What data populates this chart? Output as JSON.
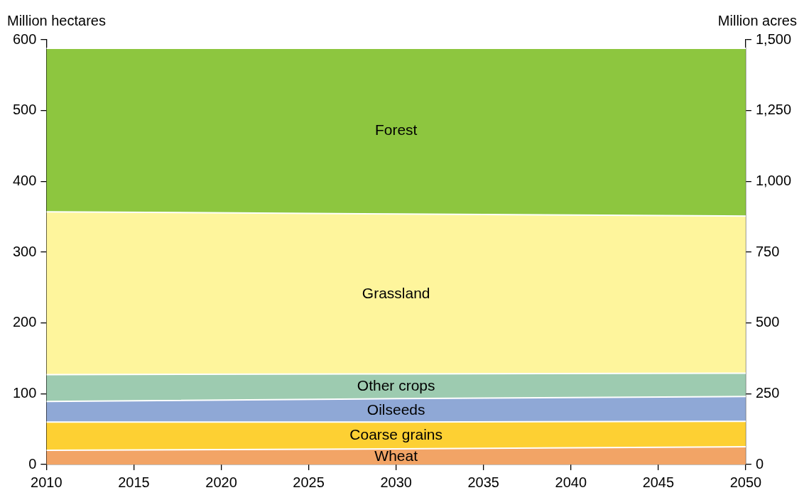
{
  "chart_data": {
    "type": "area",
    "stacked": true,
    "ylabel": "Million hectares",
    "y2label": "Million acres",
    "x": [
      2010,
      2030,
      2050
    ],
    "series": [
      {
        "name": "Wheat",
        "color": "#f2a466",
        "values": [
          20,
          22,
          25
        ]
      },
      {
        "name": "Coarse grains",
        "color": "#fdd033",
        "values": [
          40,
          38,
          36
        ]
      },
      {
        "name": "Oilseeds",
        "color": "#8fa8d6",
        "values": [
          29,
          33,
          35
        ]
      },
      {
        "name": "Other crops",
        "color": "#9dcbb0",
        "values": [
          38,
          35,
          33
        ]
      },
      {
        "name": "Grassland",
        "color": "#fef59c",
        "values": [
          230,
          226,
          222
        ]
      },
      {
        "name": "Forest",
        "color": "#8dc63f",
        "values": [
          231,
          234,
          237
        ]
      }
    ],
    "xlim": [
      2010,
      2050
    ],
    "xticks": [
      2010,
      2015,
      2020,
      2025,
      2030,
      2035,
      2040,
      2045,
      2050
    ],
    "ylim": [
      0,
      600
    ],
    "yticks": [
      0,
      100,
      200,
      300,
      400,
      500,
      600
    ],
    "y2lim": [
      0,
      1500
    ],
    "y2ticks": [
      0,
      250,
      500,
      750,
      {
        "value": 1000,
        "label": "1,000"
      },
      {
        "value": 1250,
        "label": "1,250"
      },
      {
        "value": 1500,
        "label": "1,500"
      }
    ]
  }
}
